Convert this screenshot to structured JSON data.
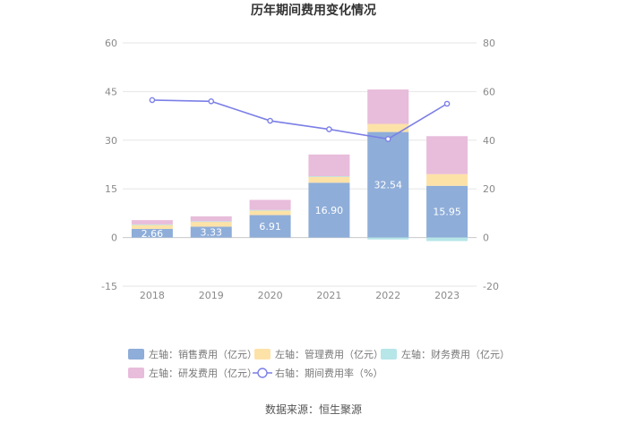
{
  "chart_data": {
    "type": "bar",
    "title": "历年期间费用变化情况",
    "categories": [
      "2018",
      "2019",
      "2020",
      "2021",
      "2022",
      "2023"
    ],
    "left_axis": {
      "min": -15,
      "max": 60,
      "ticks": [
        "-15",
        "0",
        "15",
        "30",
        "45",
        "60"
      ]
    },
    "right_axis": {
      "min": -20,
      "max": 80,
      "ticks": [
        "-20",
        "0",
        "20",
        "40",
        "60",
        "80"
      ]
    },
    "series": [
      {
        "name": "左轴：销售费用（亿元）",
        "axis": "left",
        "kind": "bar",
        "color": "#8eadd9",
        "values": [
          2.66,
          3.33,
          6.91,
          16.9,
          32.54,
          15.95
        ],
        "labels": [
          "2.66",
          "3.33",
          "6.91",
          "16.90",
          "32.54",
          "15.95"
        ]
      },
      {
        "name": "左轴：管理费用（亿元）",
        "axis": "left",
        "kind": "bar",
        "color": "#fde2a8",
        "values": [
          1.3,
          1.6,
          1.5,
          1.9,
          2.5,
          3.6
        ]
      },
      {
        "name": "左轴：财务费用（亿元）",
        "axis": "left",
        "kind": "bar",
        "color": "#b6e6e8",
        "values": [
          0.1,
          0.1,
          0.1,
          0.1,
          -0.6,
          -1.1
        ]
      },
      {
        "name": "左轴：研发费用（亿元）",
        "axis": "left",
        "kind": "bar",
        "color": "#e8bcdb",
        "values": [
          1.3,
          1.5,
          3.1,
          6.7,
          10.6,
          11.7
        ]
      },
      {
        "name": "右轴：期间费用率（%）",
        "axis": "right",
        "kind": "line",
        "color": "#7b7fe6",
        "values": [
          56.5,
          56.0,
          48.0,
          44.5,
          40.5,
          55.0
        ]
      }
    ],
    "source": "数据来源：恒生聚源"
  }
}
